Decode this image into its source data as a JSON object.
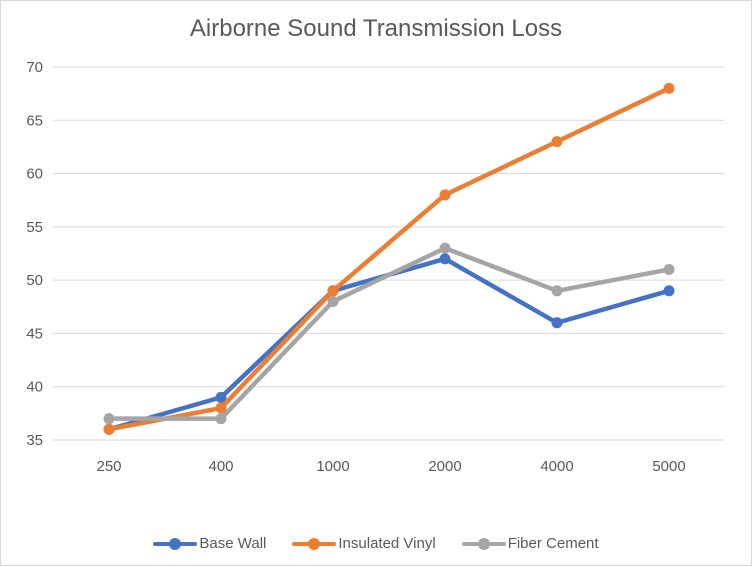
{
  "chart_data": {
    "type": "line",
    "title": "Airborne Sound Transmission Loss",
    "xlabel": "",
    "ylabel": "",
    "categories": [
      "250",
      "400",
      "1000",
      "2000",
      "4000",
      "5000"
    ],
    "ylim": [
      35,
      70
    ],
    "yticks": [
      35,
      40,
      45,
      50,
      55,
      60,
      65,
      70
    ],
    "grid": true,
    "legend_position": "bottom",
    "series": [
      {
        "name": "Base Wall",
        "color": "#4472C4",
        "values": [
          36,
          39,
          49,
          52,
          46,
          49
        ]
      },
      {
        "name": "Insulated Vinyl",
        "color": "#ED7D31",
        "values": [
          36,
          38,
          49,
          58,
          63,
          68
        ]
      },
      {
        "name": "Fiber Cement",
        "color": "#A5A5A5",
        "values": [
          37,
          37,
          48,
          53,
          49,
          51
        ]
      }
    ]
  }
}
